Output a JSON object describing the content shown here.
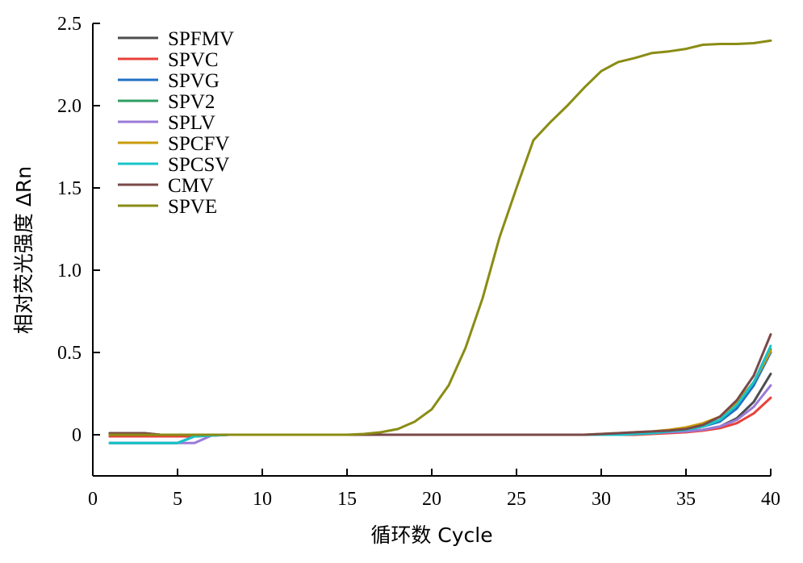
{
  "chart_data": {
    "type": "line",
    "title": "",
    "xlabel": "循环数 Cycle",
    "ylabel": "相对荧光强度 ΔRn",
    "xlim": [
      0,
      40
    ],
    "ylim": [
      -0.25,
      2.5
    ],
    "xticks": [
      0,
      5,
      10,
      15,
      20,
      25,
      30,
      35,
      40
    ],
    "xtick_labels": [
      "0",
      "5",
      "10",
      "15",
      "20",
      "25",
      "30",
      "35",
      "40"
    ],
    "yticks": [
      0,
      0.5,
      1.0,
      1.5,
      2.0,
      2.5
    ],
    "ytick_labels": [
      "0",
      "0.5",
      "1.0",
      "1.5",
      "2.0",
      "2.5"
    ],
    "grid": false,
    "legend_position": "top-left",
    "x": [
      1,
      2,
      3,
      4,
      5,
      6,
      7,
      8,
      9,
      10,
      11,
      12,
      13,
      14,
      15,
      16,
      17,
      18,
      19,
      20,
      21,
      22,
      23,
      24,
      25,
      26,
      27,
      28,
      29,
      30,
      31,
      32,
      33,
      34,
      35,
      36,
      37,
      38,
      39,
      40
    ],
    "series": [
      {
        "name": "SPFMV",
        "color": "#4d4d4d",
        "values": [
          0.01,
          0.01,
          0.01,
          0,
          0,
          0,
          0,
          0,
          0,
          0,
          0,
          0,
          0,
          0,
          0,
          0,
          0,
          0,
          0,
          0,
          0,
          0,
          0,
          0,
          0,
          0,
          0,
          0,
          0,
          0,
          0,
          0.005,
          0.01,
          0.015,
          0.02,
          0.03,
          0.05,
          0.1,
          0.2,
          0.37
        ]
      },
      {
        "name": "SPVC",
        "color": "#e8413a",
        "values": [
          -0.01,
          -0.01,
          -0.01,
          -0.01,
          -0.01,
          -0.01,
          0,
          0,
          0,
          0,
          0,
          0,
          0,
          0,
          0,
          0,
          0,
          0,
          0,
          0,
          0,
          0,
          0,
          0,
          0,
          0,
          0,
          0,
          0,
          0,
          0,
          0,
          0.005,
          0.01,
          0.015,
          0.025,
          0.04,
          0.07,
          0.13,
          0.225
        ]
      },
      {
        "name": "SPVG",
        "color": "#1f6fc4",
        "values": [
          -0.05,
          -0.05,
          -0.05,
          -0.05,
          -0.05,
          -0.01,
          -0.005,
          0,
          0,
          0,
          0,
          0,
          0,
          0,
          0,
          0,
          0,
          0,
          0,
          0,
          0,
          0,
          0,
          0,
          0,
          0,
          0,
          0,
          0,
          0,
          0,
          0.005,
          0.01,
          0.02,
          0.03,
          0.05,
          0.08,
          0.16,
          0.3,
          0.5
        ]
      },
      {
        "name": "SPV2",
        "color": "#2e9e63",
        "values": [
          -0.05,
          -0.05,
          -0.05,
          -0.05,
          -0.05,
          -0.01,
          -0.005,
          0,
          0,
          0,
          0,
          0,
          0,
          0,
          0,
          0,
          0,
          0,
          0,
          0,
          0,
          0,
          0,
          0,
          0,
          0,
          0,
          0,
          0,
          0,
          0,
          0.005,
          0.01,
          0.02,
          0.03,
          0.05,
          0.09,
          0.18,
          0.32,
          0.52
        ]
      },
      {
        "name": "SPLV",
        "color": "#9b7ad8",
        "values": [
          -0.05,
          -0.05,
          -0.05,
          -0.05,
          -0.05,
          -0.05,
          -0.005,
          0,
          0,
          0,
          0,
          0,
          0,
          0,
          0,
          0,
          0,
          0,
          0,
          0,
          0,
          0,
          0,
          0,
          0,
          0,
          0,
          0,
          0,
          0,
          0,
          0.005,
          0.01,
          0.015,
          0.02,
          0.03,
          0.05,
          0.09,
          0.17,
          0.3
        ]
      },
      {
        "name": "SPCFV",
        "color": "#c99b0a",
        "values": [
          0,
          0,
          0,
          0,
          0,
          0,
          0,
          0,
          0,
          0,
          0,
          0,
          0,
          0,
          0,
          0,
          0,
          0,
          0,
          0,
          0,
          0,
          0,
          0,
          0,
          0,
          0,
          0,
          0,
          0.005,
          0.01,
          0.015,
          0.02,
          0.03,
          0.045,
          0.07,
          0.11,
          0.2,
          0.32,
          0.51
        ]
      },
      {
        "name": "SPCSV",
        "color": "#18c4c8",
        "values": [
          -0.05,
          -0.05,
          -0.05,
          -0.05,
          -0.05,
          -0.01,
          -0.005,
          0,
          0,
          0,
          0,
          0,
          0,
          0,
          0,
          0,
          0,
          0,
          0,
          0,
          0,
          0,
          0,
          0,
          0,
          0,
          0,
          0,
          0,
          0,
          0,
          0.005,
          0.01,
          0.02,
          0.03,
          0.05,
          0.09,
          0.18,
          0.32,
          0.54
        ]
      },
      {
        "name": "CMV",
        "color": "#7a4848",
        "values": [
          0.01,
          0.01,
          0.01,
          0,
          0,
          0,
          0,
          0,
          0,
          0,
          0,
          0,
          0,
          0,
          0,
          0,
          0,
          0,
          0,
          0,
          0,
          0,
          0,
          0,
          0,
          0,
          0,
          0,
          0,
          0.005,
          0.01,
          0.015,
          0.02,
          0.025,
          0.035,
          0.06,
          0.11,
          0.21,
          0.36,
          0.61
        ]
      },
      {
        "name": "SPVE",
        "color": "#8a8c14",
        "values": [
          0,
          0,
          0,
          0,
          0,
          0,
          0,
          0,
          0,
          0,
          0,
          0,
          0,
          0,
          0,
          0.005,
          0.015,
          0.035,
          0.08,
          0.155,
          0.3,
          0.53,
          0.83,
          1.2,
          1.5,
          1.79,
          1.9,
          2.0,
          2.11,
          2.21,
          2.265,
          2.29,
          2.32,
          2.33,
          2.345,
          2.37,
          2.375,
          2.375,
          2.38,
          2.395
        ]
      }
    ]
  }
}
